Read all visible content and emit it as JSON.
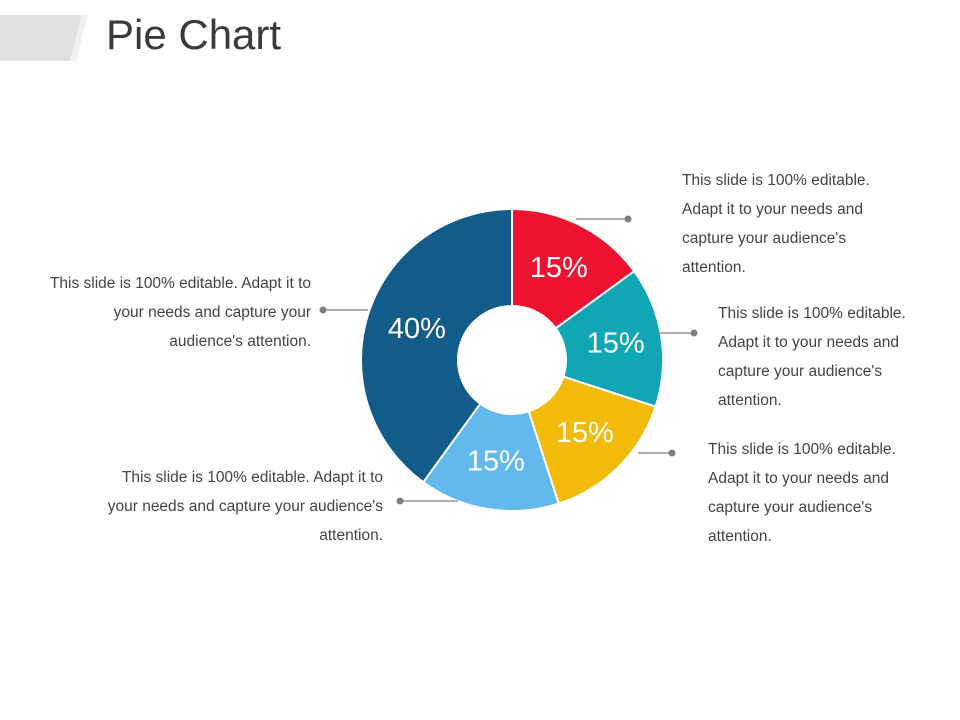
{
  "slide": {
    "title": "Pie Chart"
  },
  "colors": {
    "title_bar": "#e0e0e0",
    "leader_line": "#808080",
    "slice_label": "#ffffff"
  },
  "chart_data": {
    "type": "pie",
    "title": "Pie Chart",
    "donut": true,
    "start_angle_deg": 0,
    "slices": [
      {
        "value": 15,
        "label": "15%",
        "color": "#ee1431"
      },
      {
        "value": 15,
        "label": "15%",
        "color": "#11a6b3"
      },
      {
        "value": 15,
        "label": "15%",
        "color": "#f2bb0a"
      },
      {
        "value": 15,
        "label": "15%",
        "color": "#62b9ee"
      },
      {
        "value": 40,
        "label": "40%",
        "color": "#115c89"
      }
    ]
  },
  "callouts": [
    {
      "side": "right",
      "text": "This slide is 100% editable. Adapt it to your needs and capture your audience's attention."
    },
    {
      "side": "right",
      "text": "This slide is 100% editable. Adapt it to your needs and capture your audience's attention."
    },
    {
      "side": "right",
      "text": "This slide is 100% editable. Adapt it to your needs and capture your audience's attention."
    },
    {
      "side": "left",
      "text": "This slide is 100% editable. Adapt it to your needs and capture your audience's attention."
    },
    {
      "side": "left",
      "text": "This slide is 100% editable. Adapt it to your needs and capture your audience's attention."
    }
  ]
}
